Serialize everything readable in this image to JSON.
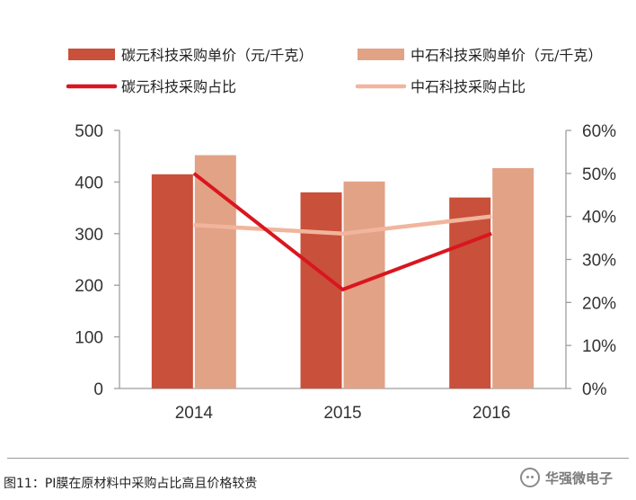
{
  "chart_data": {
    "type": "bar",
    "categories": [
      "2014",
      "2015",
      "2016"
    ],
    "series": [
      {
        "name": "碳元科技采购单价（元/千克）",
        "kind": "bar",
        "axis": "left",
        "color": "#c9503a",
        "values": [
          415,
          380,
          370
        ]
      },
      {
        "name": "中石科技采购单价（元/千克）",
        "kind": "bar",
        "axis": "left",
        "color": "#e2a286",
        "values": [
          452,
          401,
          427
        ]
      },
      {
        "name": "碳元科技采购占比",
        "kind": "line",
        "axis": "right",
        "color": "#d9161f",
        "values": [
          50,
          23,
          36
        ]
      },
      {
        "name": "中石科技采购占比",
        "kind": "line",
        "axis": "right",
        "color": "#f1b59d",
        "values": [
          38,
          36,
          40
        ]
      }
    ],
    "y_left": {
      "range": [
        0,
        500
      ],
      "ticks": [
        "0",
        "100",
        "200",
        "300",
        "400",
        "500"
      ]
    },
    "y_right": {
      "range": [
        0,
        60
      ],
      "ticks": [
        "0%",
        "10%",
        "20%",
        "30%",
        "40%",
        "50%",
        "60%"
      ]
    },
    "grid": false,
    "legend_position": "top"
  },
  "caption": "图11：PI膜在原材料中采购占比高且价格较贵",
  "watermark": {
    "icon": "wechat-icon",
    "text": "华强微电子"
  }
}
